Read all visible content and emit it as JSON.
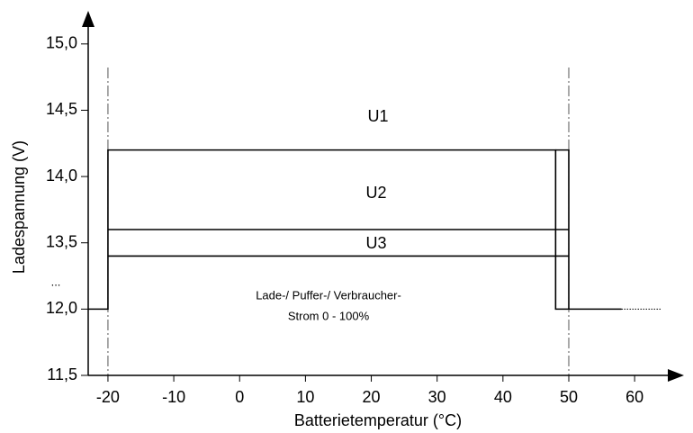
{
  "chart_data": {
    "type": "line",
    "xlabel": "Batterietemperatur (°C)",
    "ylabel": "Ladespannung (V)",
    "xlim": [
      -23,
      67.5
    ],
    "ylim": [
      11.5,
      15.25
    ],
    "ybreak": [
      12,
      13
    ],
    "xticks": [
      -20,
      -10,
      0,
      10,
      20,
      30,
      40,
      50,
      60
    ],
    "yticks": [
      {
        "value": 11.5,
        "label": "11,5"
      },
      {
        "value": 12,
        "label": "12,0"
      },
      {
        "value": 13.5,
        "label": "13,5"
      },
      {
        "value": 14,
        "label": "14,0"
      },
      {
        "value": 14.5,
        "label": "14,5"
      },
      {
        "value": 15,
        "label": "15,0"
      }
    ],
    "break_label": "...",
    "vlines": [
      -20,
      50
    ],
    "series": [
      {
        "color": "#000000",
        "style": "solid",
        "x": [
          -23,
          -20,
          -20,
          48,
          48,
          58
        ],
        "values": [
          12,
          12,
          14.2,
          14.2,
          12,
          12
        ]
      },
      {
        "color": "#000000",
        "style": "solid",
        "x": [
          48,
          50,
          50
        ],
        "values": [
          14.2,
          14.2,
          12
        ]
      },
      {
        "color": "#000000",
        "style": "solid",
        "x": [
          -20,
          50
        ],
        "values": [
          13.6,
          13.6
        ]
      },
      {
        "color": "#000000",
        "style": "solid",
        "x": [
          -20,
          50
        ],
        "values": [
          13.4,
          13.4
        ]
      },
      {
        "color": "#000000",
        "style": "dotted",
        "x": [
          58,
          64
        ],
        "values": [
          12,
          12
        ]
      }
    ],
    "annotations": [
      "U1",
      "U2",
      "U3",
      "Lade-/ Puffer-/ Verbraucher-",
      "Strom  0 - 100%"
    ]
  }
}
